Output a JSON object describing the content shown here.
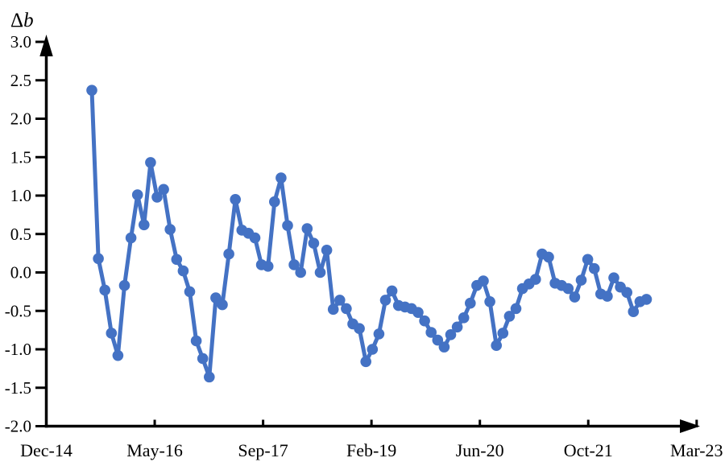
{
  "chart_data": {
    "type": "line",
    "title": "Δb",
    "series": [
      {
        "name": "Δb",
        "color": "#4472C4",
        "values": [
          2.37,
          0.18,
          -0.23,
          -0.79,
          -1.08,
          -0.17,
          0.45,
          1.01,
          0.62,
          1.43,
          0.98,
          1.08,
          0.56,
          0.17,
          0.02,
          -0.25,
          -0.89,
          -1.12,
          -1.36,
          -0.33,
          -0.42,
          0.24,
          0.95,
          0.55,
          0.51,
          0.45,
          0.1,
          0.08,
          0.92,
          1.23,
          0.61,
          0.1,
          0.0,
          0.57,
          0.38,
          0.0,
          0.29,
          -0.48,
          -0.36,
          -0.47,
          -0.67,
          -0.73,
          -1.16,
          -1.0,
          -0.8,
          -0.36,
          -0.24,
          -0.43,
          -0.45,
          -0.47,
          -0.52,
          -0.63,
          -0.78,
          -0.88,
          -0.97,
          -0.81,
          -0.71,
          -0.59,
          -0.4,
          -0.17,
          -0.11,
          -0.38,
          -0.95,
          -0.79,
          -0.57,
          -0.47,
          -0.21,
          -0.15,
          -0.09,
          0.24,
          0.2,
          -0.14,
          -0.17,
          -0.21,
          -0.32,
          -0.1,
          0.17,
          0.05,
          -0.28,
          -0.31,
          -0.07,
          -0.19,
          -0.26,
          -0.51,
          -0.38,
          -0.35
        ]
      }
    ],
    "x_tick_labels": [
      "Dec-14",
      "May-16",
      "Sep-17",
      "Feb-19",
      "Jun-20",
      "Oct-21",
      "Mar-23"
    ],
    "y_tick_labels": [
      "3.0",
      "2.5",
      "2.0",
      "1.5",
      "1.0",
      "0.5",
      "0.0",
      "-0.5",
      "-1.0",
      "-1.5",
      "-2.0"
    ],
    "ylim": [
      -2.0,
      3.0
    ],
    "y_tick_step": 0.5,
    "grid": false,
    "legend": "none",
    "marker": "circle",
    "axis_color": "#000000",
    "background_color": "#ffffff"
  }
}
